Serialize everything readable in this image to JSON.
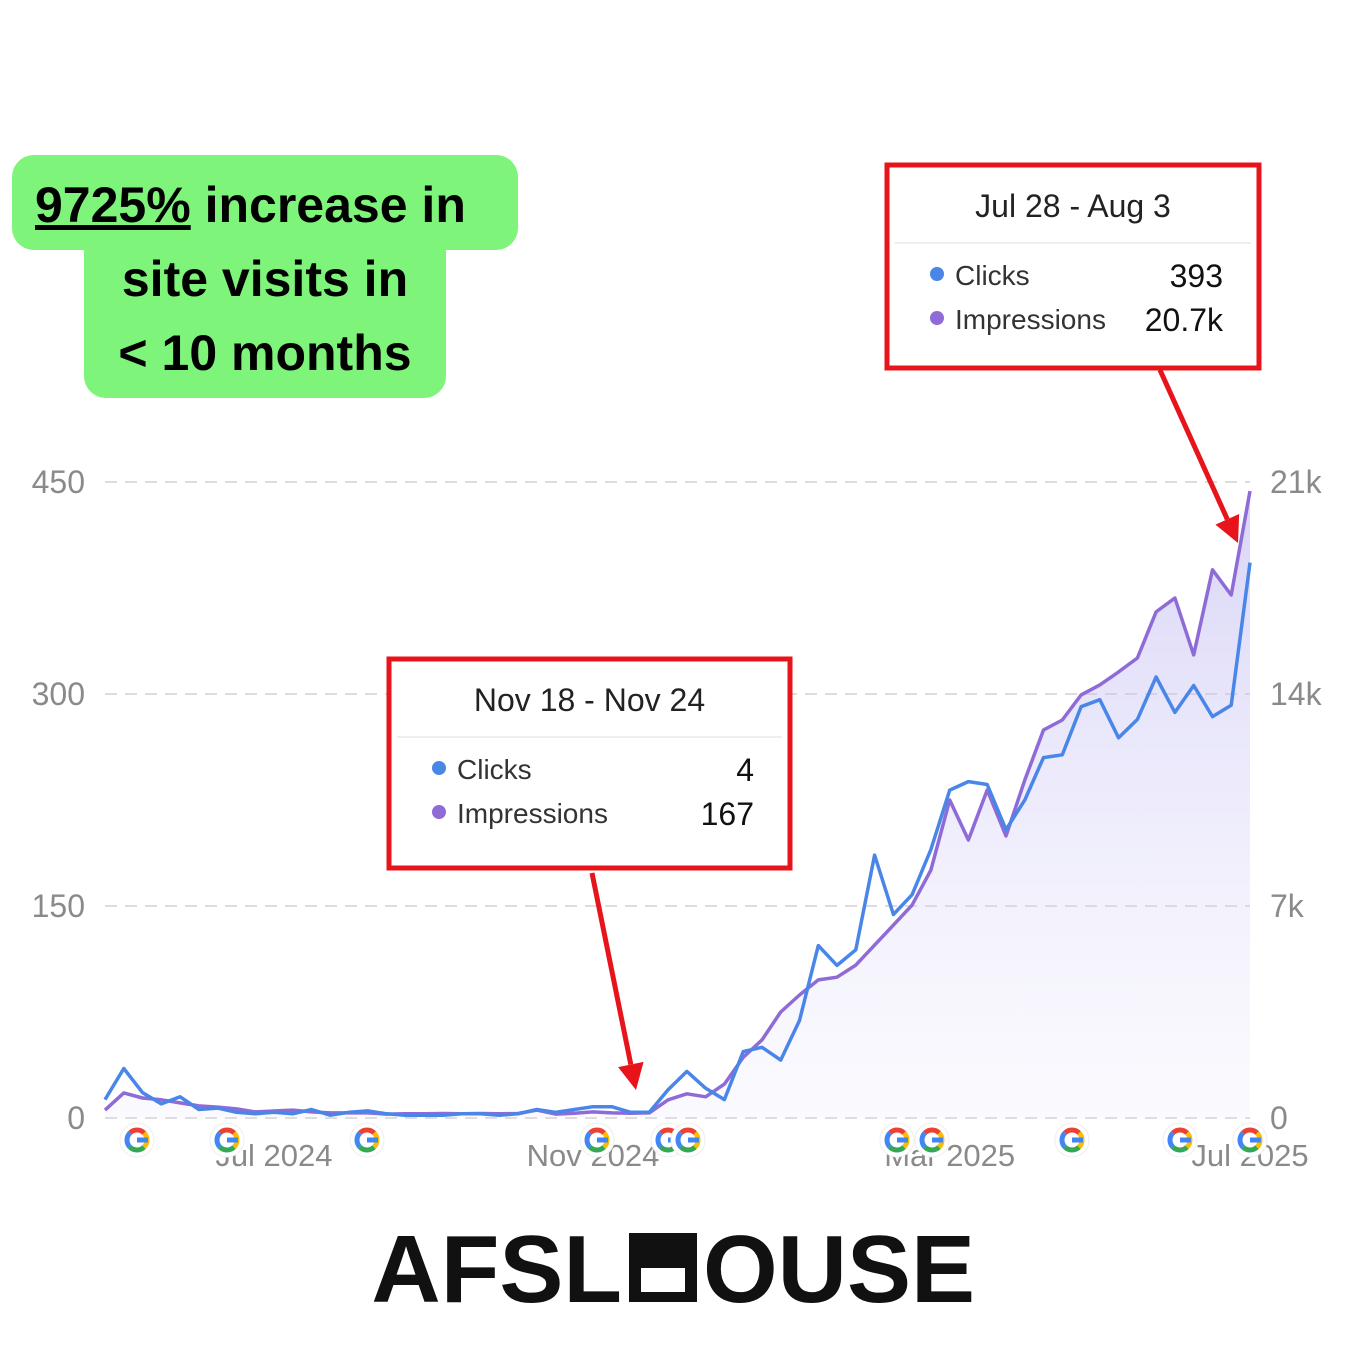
{
  "headline": {
    "highlight": "9725%",
    "lines": [
      "increase in",
      "site visits in",
      "< 10 months"
    ]
  },
  "brand": {
    "left": "AFSL",
    "right": "OUSE"
  },
  "chart_data": {
    "type": "line",
    "categories": [
      null,
      null,
      null,
      null,
      null,
      null,
      null,
      null,
      null,
      "Jul 2024",
      null,
      null,
      null,
      null,
      null,
      null,
      null,
      null,
      null,
      null,
      null,
      null,
      null,
      null,
      null,
      null,
      "Nov 2024",
      null,
      null,
      null,
      null,
      null,
      null,
      null,
      null,
      null,
      null,
      null,
      null,
      null,
      null,
      null,
      null,
      null,
      null,
      "Mar 2025",
      null,
      null,
      null,
      null,
      null,
      null,
      null,
      null,
      null,
      null,
      null,
      null,
      null,
      null,
      null,
      "Jul 2025"
    ],
    "series": [
      {
        "name": "Clicks",
        "color": "#4a86e8",
        "values": [
          13,
          35,
          18,
          10,
          15,
          6,
          7,
          4,
          3,
          4,
          3,
          6,
          2,
          4,
          5,
          3,
          2,
          2,
          2,
          3,
          3,
          2,
          3,
          6,
          4,
          6,
          8,
          8,
          4,
          4,
          20,
          33,
          21,
          13,
          47,
          50,
          41,
          69,
          122,
          108,
          119,
          186,
          144,
          158,
          190,
          232,
          238,
          236,
          204,
          225,
          255,
          257,
          291,
          296,
          269,
          282,
          312,
          287,
          306,
          284,
          292,
          393
        ]
      },
      {
        "name": "Impressions",
        "color": "#8e6bd6",
        "axis": "y2",
        "values": [
          260,
          830,
          660,
          600,
          500,
          400,
          360,
          300,
          200,
          230,
          260,
          200,
          170,
          170,
          170,
          130,
          140,
          140,
          150,
          140,
          150,
          140,
          150,
          260,
          130,
          160,
          200,
          170,
          160,
          167,
          600,
          800,
          700,
          1120,
          2000,
          2580,
          3500,
          4060,
          4560,
          4650,
          5050,
          5710,
          6370,
          7030,
          8190,
          10500,
          9180,
          10830,
          9310,
          11160,
          12810,
          13140,
          13970,
          14300,
          14730,
          15190,
          16710,
          17170,
          15290,
          18100,
          17270,
          20700
        ],
        "value_labels": [
          null,
          null,
          null,
          null,
          null,
          null,
          null,
          null,
          null,
          null,
          null,
          null,
          null,
          null,
          null,
          null,
          null,
          null,
          null,
          null,
          null,
          null,
          null,
          null,
          null,
          null,
          null,
          null,
          null,
          null,
          null,
          null,
          null,
          null,
          null,
          null,
          null,
          null,
          null,
          null,
          null,
          null,
          null,
          null,
          null,
          null,
          null,
          null,
          null,
          null,
          null,
          null,
          null,
          null,
          null,
          null,
          null,
          null,
          null,
          null,
          null,
          "20.7k"
        ]
      }
    ],
    "ylim": [
      0,
      450
    ],
    "yticks": [
      0,
      150,
      300,
      450
    ],
    "y2lim": [
      0,
      21000
    ],
    "y2ticks": [
      0,
      {
        "value": 7000,
        "label": "7k"
      },
      {
        "value": 14000,
        "label": "14k"
      },
      {
        "value": 21000,
        "label": "21k"
      }
    ],
    "grid": true,
    "tooltips": [
      {
        "title": "Nov 18 - Nov 24"
      },
      {
        "title": "Jul 28 - Aug 3"
      }
    ]
  }
}
